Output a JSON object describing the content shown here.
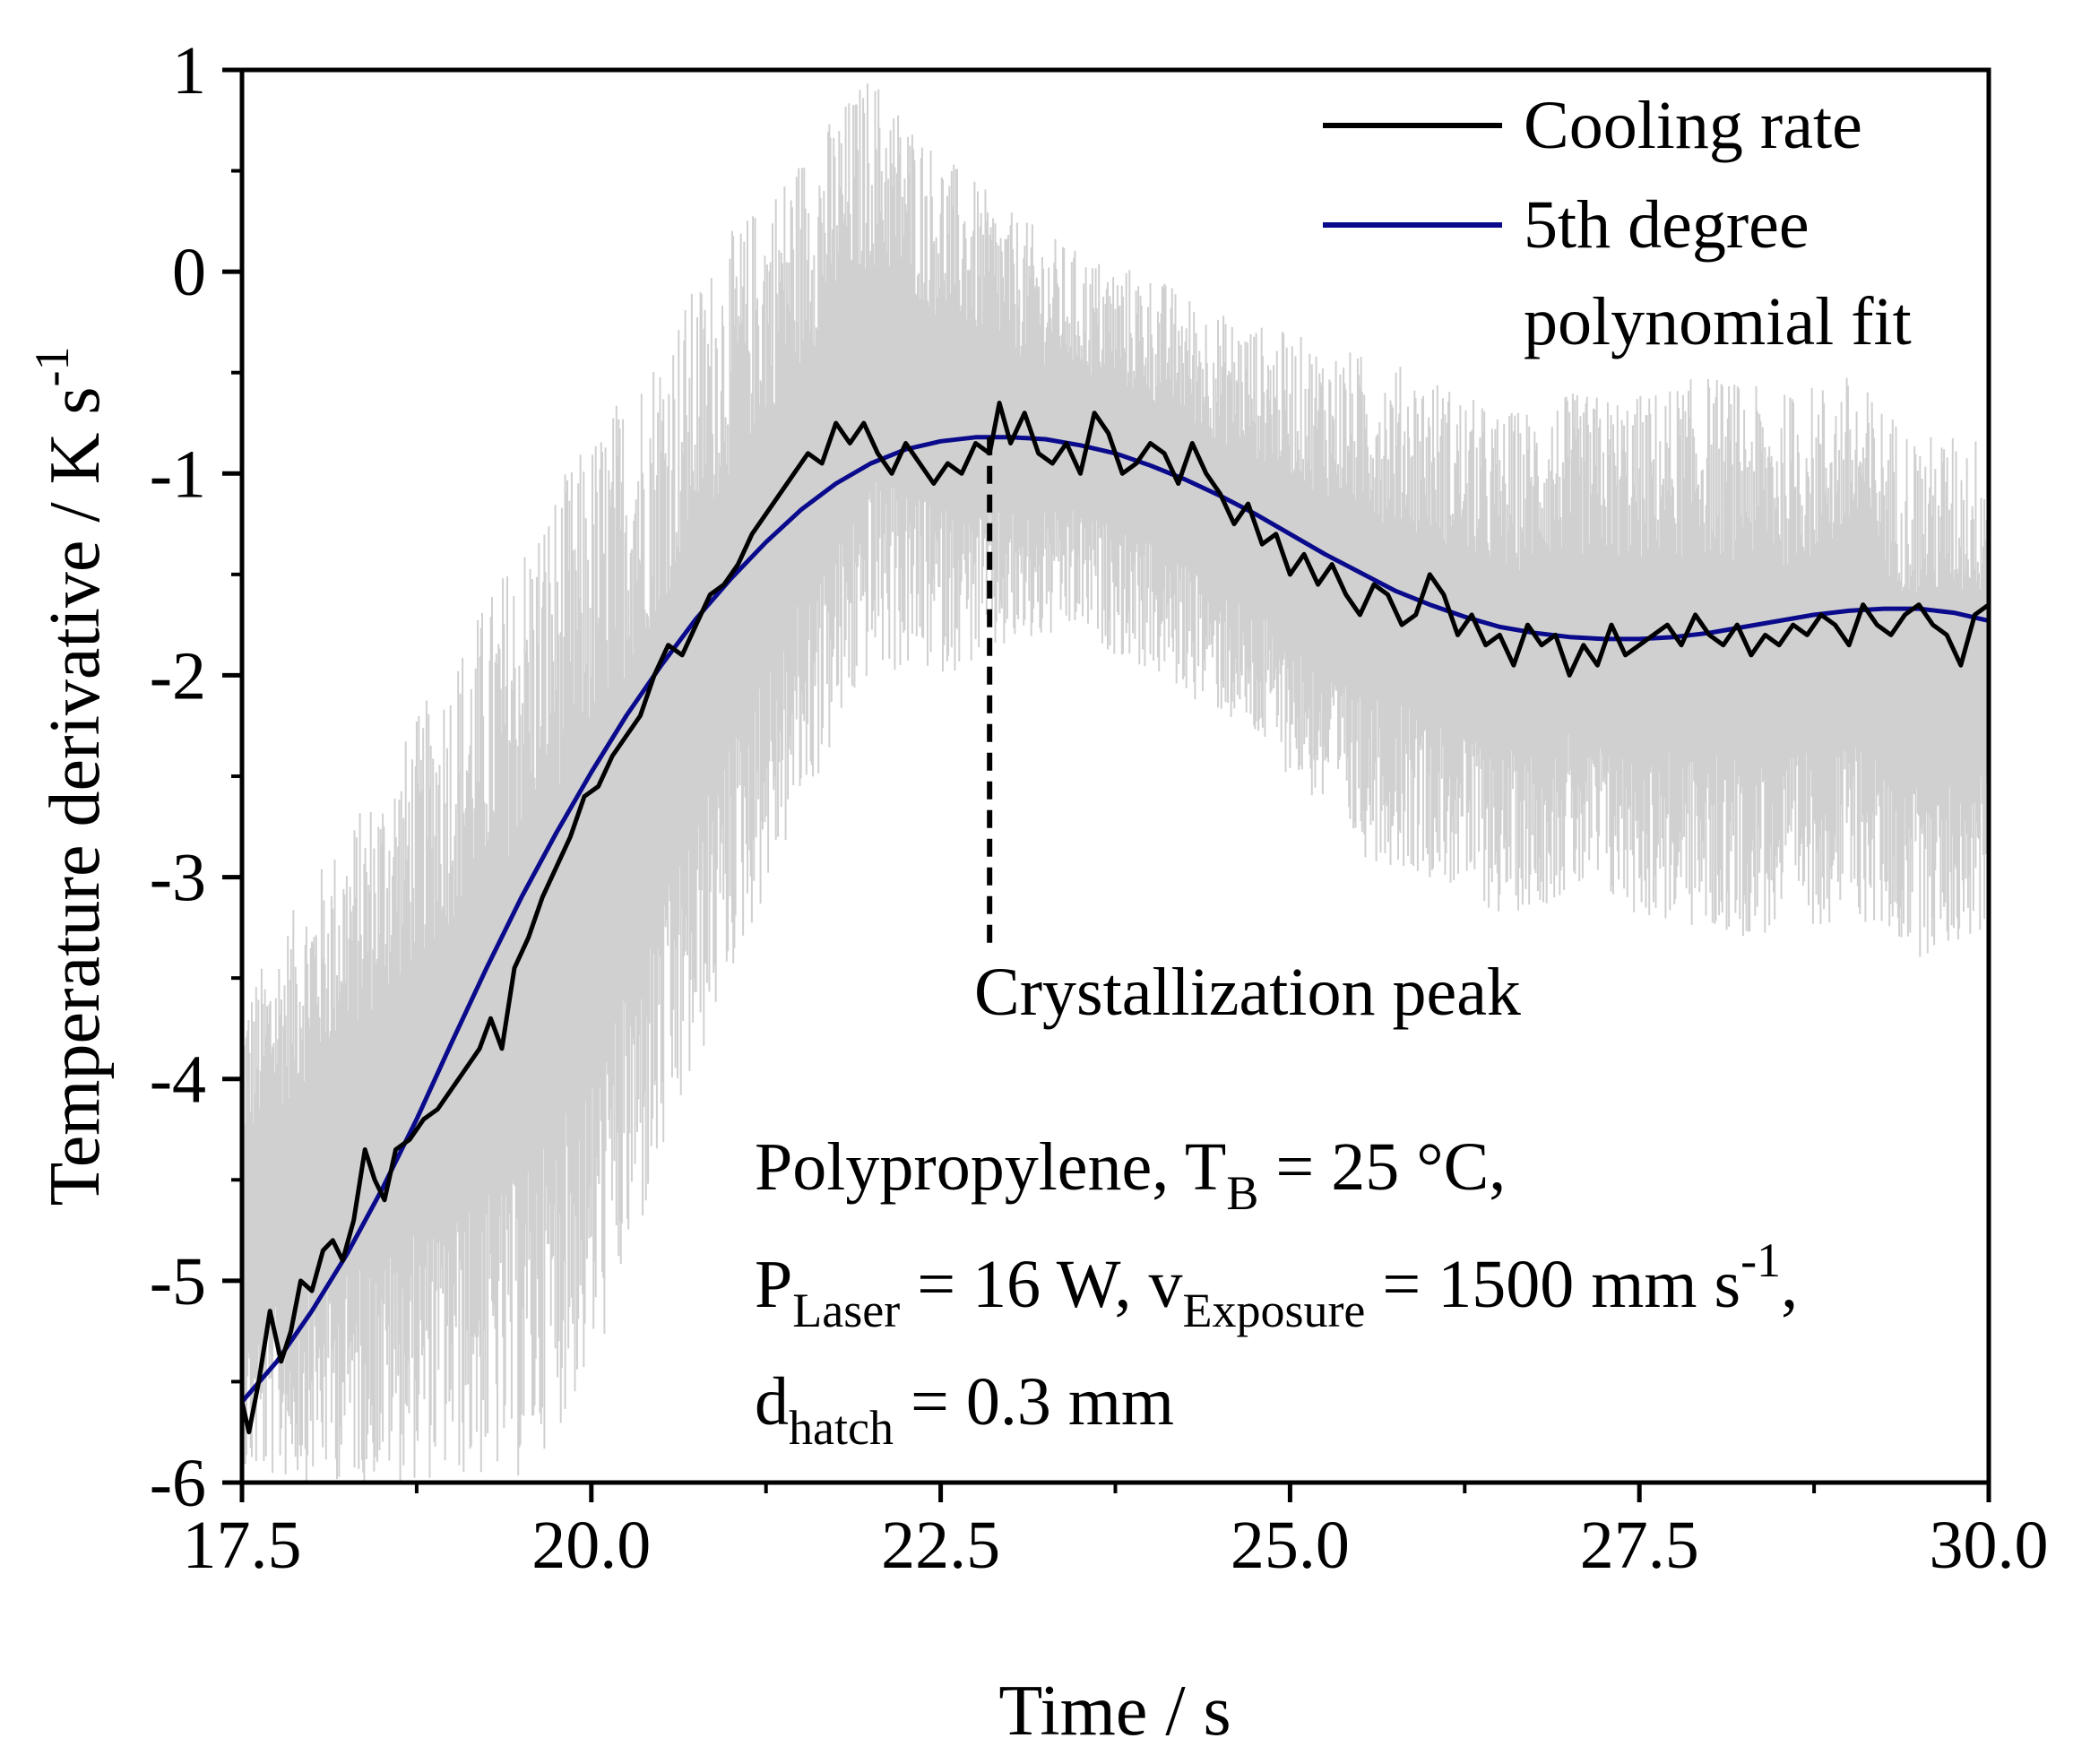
{
  "chart_data": {
    "type": "line",
    "title": "",
    "xlabel": "Time / s",
    "ylabel": {
      "main": "Temperature derivative / K s",
      "exponent": "-1"
    },
    "xlim": [
      17.5,
      30.0
    ],
    "ylim": [
      -6,
      1
    ],
    "x_ticks": [
      "17.5",
      "20.0",
      "22.5",
      "25.0",
      "27.5",
      "30.0"
    ],
    "y_ticks": [
      "1",
      "0",
      "-1",
      "-2",
      "-3",
      "-4",
      "-5",
      "-6"
    ],
    "grid": false,
    "legend_position": "top-right",
    "series": [
      {
        "name": "Raw derivative (noise)",
        "color": "#d0d0d0",
        "legend": false,
        "x": [
          17.5,
          18.0,
          18.5,
          19.0,
          19.5,
          20.0,
          20.5,
          21.0,
          21.5,
          22.0,
          22.5,
          23.0,
          23.5,
          24.0,
          24.5,
          25.0,
          25.5,
          26.0,
          26.5,
          27.0,
          27.5,
          28.0,
          28.5,
          29.0,
          29.5,
          30.0
        ],
        "upper": [
          -3.6,
          -3.0,
          -2.5,
          -1.9,
          -1.3,
          -0.8,
          -0.3,
          0.2,
          0.6,
          1.0,
          0.6,
          0.3,
          0.1,
          0.0,
          -0.2,
          -0.3,
          -0.4,
          -0.5,
          -0.7,
          -0.6,
          -0.6,
          -0.5,
          -0.6,
          -0.5,
          -0.8,
          -0.8
        ],
        "lower": [
          -6.0,
          -6.0,
          -6.0,
          -6.0,
          -6.0,
          -5.5,
          -4.5,
          -3.5,
          -2.7,
          -2.0,
          -2.0,
          -1.9,
          -1.8,
          -2.0,
          -2.2,
          -2.5,
          -2.9,
          -3.0,
          -3.2,
          -3.1,
          -3.2,
          -3.3,
          -3.3,
          -3.2,
          -3.4,
          -3.3
        ]
      },
      {
        "name": "Cooling rate",
        "color": "#000000",
        "x": [
          17.5,
          17.55,
          17.62,
          17.7,
          17.78,
          17.85,
          17.92,
          18.0,
          18.08,
          18.15,
          18.22,
          18.3,
          18.38,
          18.45,
          18.52,
          18.6,
          18.7,
          18.8,
          18.9,
          19.0,
          19.1,
          19.2,
          19.28,
          19.36,
          19.45,
          19.55,
          19.65,
          19.75,
          19.85,
          19.95,
          20.05,
          20.15,
          20.25,
          20.35,
          20.45,
          20.55,
          20.65,
          20.75,
          20.85,
          20.95,
          21.05,
          21.15,
          21.25,
          21.35,
          21.45,
          21.55,
          21.65,
          21.75,
          21.85,
          21.95,
          22.05,
          22.15,
          22.25,
          22.35,
          22.45,
          22.55,
          22.65,
          22.75,
          22.85,
          22.92,
          23.0,
          23.1,
          23.2,
          23.3,
          23.4,
          23.5,
          23.6,
          23.7,
          23.8,
          23.9,
          24.0,
          24.1,
          24.2,
          24.3,
          24.4,
          24.5,
          24.6,
          24.7,
          24.8,
          24.9,
          25.0,
          25.1,
          25.2,
          25.3,
          25.4,
          25.5,
          25.6,
          25.7,
          25.8,
          25.9,
          26.0,
          26.1,
          26.2,
          26.3,
          26.4,
          26.5,
          26.6,
          26.7,
          26.8,
          26.9,
          27.0,
          27.1,
          27.2,
          27.3,
          27.4,
          27.5,
          27.6,
          27.7,
          27.8,
          27.9,
          28.0,
          28.1,
          28.2,
          28.3,
          28.4,
          28.5,
          28.6,
          28.7,
          28.8,
          28.9,
          29.0,
          29.1,
          29.2,
          29.3,
          29.4,
          29.5,
          29.6,
          29.7,
          29.8,
          29.9,
          30.0
        ],
        "y": [
          -5.6,
          -5.75,
          -5.5,
          -5.15,
          -5.4,
          -5.25,
          -5.0,
          -5.05,
          -4.85,
          -4.8,
          -4.9,
          -4.7,
          -4.35,
          -4.5,
          -4.6,
          -4.35,
          -4.3,
          -4.2,
          -4.15,
          -4.05,
          -3.95,
          -3.85,
          -3.7,
          -3.85,
          -3.45,
          -3.3,
          -3.1,
          -2.95,
          -2.8,
          -2.6,
          -2.55,
          -2.4,
          -2.3,
          -2.2,
          -2.0,
          -1.85,
          -1.9,
          -1.75,
          -1.6,
          -1.55,
          -1.45,
          -1.3,
          -1.2,
          -1.1,
          -1.0,
          -0.9,
          -0.95,
          -0.75,
          -0.85,
          -0.75,
          -0.9,
          -1.0,
          -0.85,
          -0.95,
          -1.05,
          -0.95,
          -1.0,
          -0.85,
          -0.9,
          -0.65,
          -0.85,
          -0.7,
          -0.9,
          -0.95,
          -0.85,
          -1.0,
          -0.7,
          -0.8,
          -1.0,
          -0.95,
          -0.85,
          -0.9,
          -1.05,
          -0.85,
          -1.0,
          -1.1,
          -1.25,
          -1.15,
          -1.35,
          -1.3,
          -1.5,
          -1.4,
          -1.55,
          -1.45,
          -1.6,
          -1.7,
          -1.55,
          -1.6,
          -1.75,
          -1.7,
          -1.5,
          -1.6,
          -1.8,
          -1.7,
          -1.85,
          -1.8,
          -1.95,
          -1.75,
          -1.85,
          -1.8,
          -2.0,
          -1.85,
          -1.95,
          -1.75,
          -1.9,
          -1.85,
          -1.8,
          -1.75,
          -1.85,
          -1.7,
          -1.8,
          -1.85,
          -1.75,
          -1.9,
          -1.8,
          -1.85,
          -1.75,
          -1.8,
          -1.7,
          -1.75,
          -1.85,
          -1.65,
          -1.75,
          -1.8,
          -1.7,
          -1.65,
          -1.75,
          -1.8,
          -1.95,
          -1.7,
          -1.65
        ]
      },
      {
        "name": "5th degree polynomial fit",
        "legend_lines": [
          "5th degree",
          "polynomial fit"
        ],
        "color": "#0a0a8c",
        "x": [
          17.5,
          17.75,
          18.0,
          18.25,
          18.5,
          18.75,
          19.0,
          19.25,
          19.5,
          19.75,
          20.0,
          20.25,
          20.5,
          20.75,
          21.0,
          21.25,
          21.5,
          21.75,
          22.0,
          22.25,
          22.5,
          22.75,
          23.0,
          23.25,
          23.5,
          23.75,
          24.0,
          24.25,
          24.5,
          24.75,
          25.0,
          25.25,
          25.5,
          25.75,
          26.0,
          26.25,
          26.5,
          26.75,
          27.0,
          27.25,
          27.5,
          27.75,
          28.0,
          28.25,
          28.5,
          28.75,
          29.0,
          29.25,
          29.5,
          29.75,
          30.0
        ],
        "y": [
          -5.6,
          -5.4,
          -5.15,
          -4.87,
          -4.55,
          -4.2,
          -3.82,
          -3.45,
          -3.1,
          -2.78,
          -2.48,
          -2.2,
          -1.95,
          -1.72,
          -1.52,
          -1.34,
          -1.18,
          -1.05,
          -0.95,
          -0.88,
          -0.84,
          -0.82,
          -0.82,
          -0.83,
          -0.86,
          -0.9,
          -0.96,
          -1.03,
          -1.11,
          -1.2,
          -1.3,
          -1.4,
          -1.49,
          -1.58,
          -1.65,
          -1.71,
          -1.76,
          -1.79,
          -1.81,
          -1.82,
          -1.82,
          -1.81,
          -1.79,
          -1.76,
          -1.73,
          -1.7,
          -1.68,
          -1.67,
          -1.67,
          -1.69,
          -1.73
        ]
      }
    ],
    "annotations": {
      "peak_x": 22.85,
      "peak_y_top": -0.82,
      "peak_y_bottom": -3.35,
      "peak_label": "Crystallization peak",
      "info_line1": {
        "prefix": "Polypropylene, T",
        "sub": "B",
        "suffix": " = 25 °C,"
      },
      "info_line2": {
        "p": "P",
        "p_sub": "Laser",
        "mid": " = 16 W, v",
        "v_sub": "Exposure",
        "end": " = 1500 mm s",
        "sup": "-1",
        "tail": ","
      },
      "info_line3": {
        "d": "d",
        "d_sub": "hatch",
        "end": " = 0.3 mm"
      }
    }
  }
}
